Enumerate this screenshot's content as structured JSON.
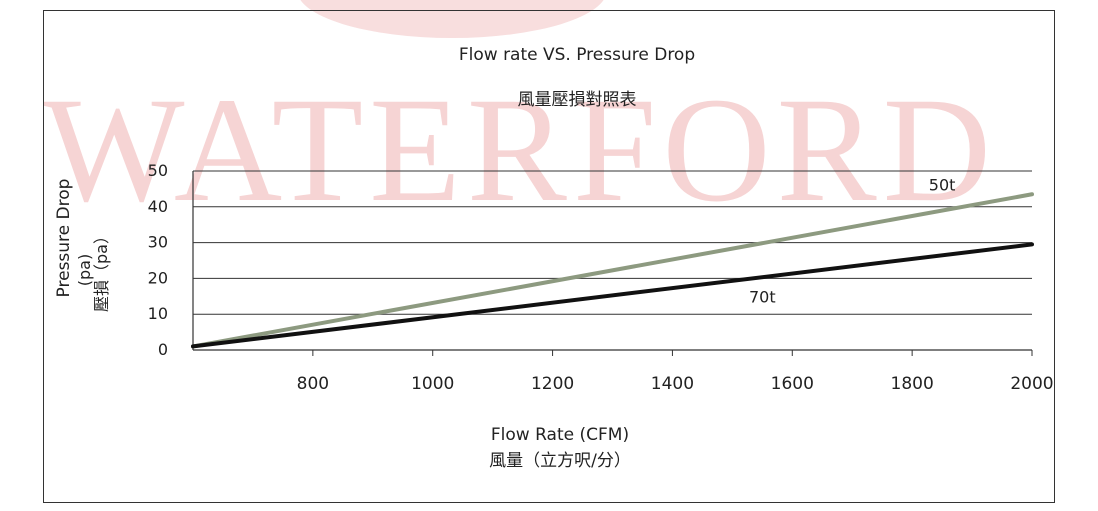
{
  "watermark": {
    "text": "WATERFORD",
    "color": "#f6d4d4"
  },
  "chart_data": {
    "type": "line",
    "title": "Flow rate VS. Pressure Drop",
    "subtitle": "風量壓損對照表",
    "xlabel": "Flow Rate (CFM)",
    "xlabel_cn": "風量（立方呎/分）",
    "ylabel": "Pressure Drop",
    "ylabel_unit": "(pa)",
    "ylabel_cn": "壓損（pa）",
    "xlim": [
      600,
      2000
    ],
    "ylim": [
      0,
      50
    ],
    "xticks": [
      800,
      1000,
      1200,
      1400,
      1600,
      1800,
      2000
    ],
    "yticks": [
      0,
      10,
      20,
      30,
      40,
      50
    ],
    "grid": "horizontal",
    "series": [
      {
        "name": "50t",
        "color": "#8d9a80",
        "x": [
          600,
          2000
        ],
        "y": [
          1,
          43.5
        ],
        "label_at": [
          1850,
          44.5
        ]
      },
      {
        "name": "70t",
        "color": "#111111",
        "x": [
          600,
          2000
        ],
        "y": [
          1,
          29.5
        ],
        "label_at": [
          1550,
          13.2
        ]
      }
    ]
  }
}
